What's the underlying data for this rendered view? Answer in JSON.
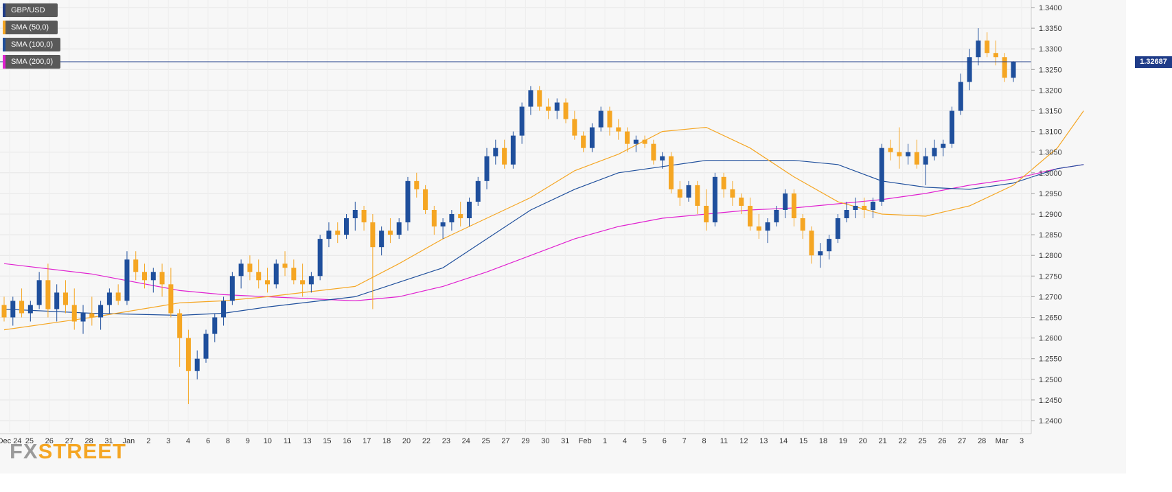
{
  "chart_data": {
    "type": "candlestick",
    "symbol": "GBP/USD",
    "current_price": "1.32687",
    "current_price_value": 1.32687,
    "watermark": {
      "part1": "FX",
      "part2": "STREET"
    },
    "legend": [
      {
        "label": "GBP/USD",
        "color": "#1f3c88"
      },
      {
        "label": "SMA (50,0)",
        "color": "#f5a623"
      },
      {
        "label": "SMA (100,0)",
        "color": "#1f4f9c"
      },
      {
        "label": "SMA (200,0)",
        "color": "#e020d0"
      }
    ],
    "ylim": [
      1.2375,
      1.341
    ],
    "y_ticks": [
      "1.3400",
      "1.3350",
      "1.3300",
      "1.3250",
      "1.3200",
      "1.3150",
      "1.3100",
      "1.3050",
      "1.3000",
      "1.2950",
      "1.2900",
      "1.2850",
      "1.2800",
      "1.2750",
      "1.2700",
      "1.2650",
      "1.2600",
      "1.2550",
      "1.2500",
      "1.2450",
      "1.2400"
    ],
    "x_tick_labels": [
      "Dec 24",
      "25",
      "26",
      "27",
      "28",
      "31",
      "Jan",
      "2",
      "3",
      "4",
      "6",
      "8",
      "9",
      "10",
      "11",
      "13",
      "15",
      "16",
      "17",
      "18",
      "20",
      "22",
      "23",
      "24",
      "25",
      "27",
      "29",
      "30",
      "31",
      "Feb",
      "1",
      "4",
      "5",
      "6",
      "7",
      "8",
      "11",
      "12",
      "13",
      "14",
      "15",
      "18",
      "19",
      "20",
      "21",
      "22",
      "25",
      "26",
      "27",
      "28",
      "Mar",
      "3"
    ],
    "bull_color": "#1f4f9c",
    "bear_color": "#f5a623",
    "grid": true,
    "candles": [
      [
        1.268,
        1.27,
        1.264,
        1.265
      ],
      [
        1.265,
        1.27,
        1.263,
        1.269
      ],
      [
        1.269,
        1.272,
        1.265,
        1.266
      ],
      [
        1.266,
        1.269,
        1.264,
        1.268
      ],
      [
        1.268,
        1.276,
        1.267,
        1.274
      ],
      [
        1.274,
        1.278,
        1.265,
        1.267
      ],
      [
        1.267,
        1.273,
        1.264,
        1.271
      ],
      [
        1.271,
        1.274,
        1.266,
        1.268
      ],
      [
        1.268,
        1.272,
        1.262,
        1.264
      ],
      [
        1.264,
        1.268,
        1.261,
        1.266
      ],
      [
        1.266,
        1.27,
        1.263,
        1.265
      ],
      [
        1.265,
        1.269,
        1.262,
        1.268
      ],
      [
        1.268,
        1.272,
        1.266,
        1.271
      ],
      [
        1.271,
        1.273,
        1.268,
        1.269
      ],
      [
        1.269,
        1.281,
        1.268,
        1.279
      ],
      [
        1.279,
        1.281,
        1.274,
        1.276
      ],
      [
        1.276,
        1.278,
        1.272,
        1.274
      ],
      [
        1.274,
        1.277,
        1.271,
        1.276
      ],
      [
        1.276,
        1.278,
        1.27,
        1.273
      ],
      [
        1.273,
        1.277,
        1.265,
        1.266
      ],
      [
        1.266,
        1.267,
        1.253,
        1.26
      ],
      [
        1.26,
        1.262,
        1.244,
        1.252
      ],
      [
        1.252,
        1.257,
        1.25,
        1.255
      ],
      [
        1.255,
        1.262,
        1.254,
        1.261
      ],
      [
        1.261,
        1.266,
        1.259,
        1.265
      ],
      [
        1.265,
        1.27,
        1.263,
        1.269
      ],
      [
        1.269,
        1.276,
        1.268,
        1.275
      ],
      [
        1.275,
        1.279,
        1.272,
        1.278
      ],
      [
        1.278,
        1.28,
        1.274,
        1.276
      ],
      [
        1.276,
        1.279,
        1.272,
        1.274
      ],
      [
        1.274,
        1.277,
        1.271,
        1.273
      ],
      [
        1.273,
        1.279,
        1.272,
        1.278
      ],
      [
        1.278,
        1.281,
        1.275,
        1.277
      ],
      [
        1.277,
        1.279,
        1.273,
        1.274
      ],
      [
        1.274,
        1.278,
        1.27,
        1.273
      ],
      [
        1.273,
        1.276,
        1.271,
        1.275
      ],
      [
        1.275,
        1.285,
        1.274,
        1.284
      ],
      [
        1.284,
        1.288,
        1.282,
        1.286
      ],
      [
        1.286,
        1.288,
        1.283,
        1.285
      ],
      [
        1.285,
        1.29,
        1.284,
        1.289
      ],
      [
        1.289,
        1.293,
        1.286,
        1.291
      ],
      [
        1.291,
        1.292,
        1.286,
        1.288
      ],
      [
        1.288,
        1.29,
        1.267,
        1.282
      ],
      [
        1.282,
        1.287,
        1.28,
        1.286
      ],
      [
        1.286,
        1.289,
        1.283,
        1.285
      ],
      [
        1.285,
        1.289,
        1.284,
        1.288
      ],
      [
        1.288,
        1.299,
        1.286,
        1.298
      ],
      [
        1.298,
        1.3,
        1.294,
        1.296
      ],
      [
        1.296,
        1.297,
        1.29,
        1.291
      ],
      [
        1.291,
        1.292,
        1.285,
        1.287
      ],
      [
        1.287,
        1.289,
        1.284,
        1.288
      ],
      [
        1.288,
        1.291,
        1.286,
        1.29
      ],
      [
        1.29,
        1.293,
        1.287,
        1.289
      ],
      [
        1.289,
        1.294,
        1.287,
        1.293
      ],
      [
        1.293,
        1.299,
        1.292,
        1.298
      ],
      [
        1.298,
        1.306,
        1.296,
        1.304
      ],
      [
        1.304,
        1.308,
        1.302,
        1.306
      ],
      [
        1.306,
        1.308,
        1.301,
        1.302
      ],
      [
        1.302,
        1.31,
        1.301,
        1.309
      ],
      [
        1.309,
        1.317,
        1.307,
        1.316
      ],
      [
        1.316,
        1.321,
        1.314,
        1.32
      ],
      [
        1.32,
        1.321,
        1.315,
        1.316
      ],
      [
        1.316,
        1.318,
        1.313,
        1.315
      ],
      [
        1.315,
        1.318,
        1.313,
        1.317
      ],
      [
        1.317,
        1.318,
        1.312,
        1.313
      ],
      [
        1.313,
        1.315,
        1.308,
        1.309
      ],
      [
        1.309,
        1.31,
        1.305,
        1.306
      ],
      [
        1.306,
        1.312,
        1.305,
        1.311
      ],
      [
        1.311,
        1.316,
        1.31,
        1.315
      ],
      [
        1.315,
        1.316,
        1.309,
        1.311
      ],
      [
        1.311,
        1.313,
        1.308,
        1.31
      ],
      [
        1.31,
        1.311,
        1.305,
        1.307
      ],
      [
        1.307,
        1.309,
        1.305,
        1.308
      ],
      [
        1.308,
        1.309,
        1.306,
        1.307
      ],
      [
        1.307,
        1.308,
        1.302,
        1.303
      ],
      [
        1.303,
        1.305,
        1.301,
        1.304
      ],
      [
        1.304,
        1.305,
        1.295,
        1.296
      ],
      [
        1.296,
        1.298,
        1.292,
        1.294
      ],
      [
        1.294,
        1.298,
        1.293,
        1.297
      ],
      [
        1.297,
        1.298,
        1.29,
        1.292
      ],
      [
        1.292,
        1.296,
        1.286,
        1.288
      ],
      [
        1.288,
        1.3,
        1.287,
        1.299
      ],
      [
        1.299,
        1.3,
        1.294,
        1.296
      ],
      [
        1.296,
        1.298,
        1.292,
        1.294
      ],
      [
        1.294,
        1.295,
        1.29,
        1.292
      ],
      [
        1.292,
        1.294,
        1.286,
        1.287
      ],
      [
        1.287,
        1.29,
        1.284,
        1.286
      ],
      [
        1.286,
        1.289,
        1.283,
        1.288
      ],
      [
        1.288,
        1.292,
        1.287,
        1.291
      ],
      [
        1.291,
        1.296,
        1.289,
        1.295
      ],
      [
        1.295,
        1.296,
        1.287,
        1.289
      ],
      [
        1.289,
        1.29,
        1.284,
        1.286
      ],
      [
        1.286,
        1.287,
        1.278,
        1.28
      ],
      [
        1.28,
        1.283,
        1.277,
        1.281
      ],
      [
        1.281,
        1.285,
        1.279,
        1.284
      ],
      [
        1.284,
        1.29,
        1.283,
        1.289
      ],
      [
        1.289,
        1.293,
        1.288,
        1.291
      ],
      [
        1.291,
        1.294,
        1.289,
        1.292
      ],
      [
        1.292,
        1.294,
        1.289,
        1.291
      ],
      [
        1.291,
        1.294,
        1.289,
        1.293
      ],
      [
        1.293,
        1.307,
        1.292,
        1.306
      ],
      [
        1.306,
        1.308,
        1.303,
        1.305
      ],
      [
        1.305,
        1.311,
        1.301,
        1.304
      ],
      [
        1.304,
        1.307,
        1.302,
        1.305
      ],
      [
        1.305,
        1.308,
        1.301,
        1.302
      ],
      [
        1.302,
        1.306,
        1.297,
        1.304
      ],
      [
        1.304,
        1.308,
        1.303,
        1.306
      ],
      [
        1.306,
        1.308,
        1.304,
        1.307
      ],
      [
        1.307,
        1.316,
        1.306,
        1.315
      ],
      [
        1.315,
        1.324,
        1.314,
        1.322
      ],
      [
        1.322,
        1.33,
        1.32,
        1.328
      ],
      [
        1.328,
        1.335,
        1.326,
        1.332
      ],
      [
        1.332,
        1.334,
        1.328,
        1.329
      ],
      [
        1.329,
        1.332,
        1.326,
        1.328
      ],
      [
        1.328,
        1.329,
        1.322,
        1.323
      ],
      [
        1.323,
        1.327,
        1.322,
        1.3269
      ]
    ],
    "sma50": [
      [
        0,
        1.262
      ],
      [
        10,
        1.265
      ],
      [
        20,
        1.2685
      ],
      [
        25,
        1.269
      ],
      [
        30,
        1.27
      ],
      [
        40,
        1.2725
      ],
      [
        45,
        1.278
      ],
      [
        50,
        1.284
      ],
      [
        55,
        1.289
      ],
      [
        60,
        1.294
      ],
      [
        65,
        1.3005
      ],
      [
        70,
        1.3045
      ],
      [
        75,
        1.31
      ],
      [
        80,
        1.311
      ],
      [
        85,
        1.306
      ],
      [
        90,
        1.299
      ],
      [
        95,
        1.293
      ],
      [
        100,
        1.29
      ],
      [
        105,
        1.2895
      ],
      [
        110,
        1.292
      ],
      [
        115,
        1.297
      ],
      [
        120,
        1.306
      ],
      [
        123,
        1.315
      ]
    ],
    "sma100": [
      [
        0,
        1.267
      ],
      [
        10,
        1.266
      ],
      [
        20,
        1.2655
      ],
      [
        25,
        1.266
      ],
      [
        30,
        1.2675
      ],
      [
        40,
        1.27
      ],
      [
        45,
        1.2735
      ],
      [
        50,
        1.277
      ],
      [
        55,
        1.284
      ],
      [
        60,
        1.291
      ],
      [
        65,
        1.296
      ],
      [
        70,
        1.3
      ],
      [
        75,
        1.3015
      ],
      [
        80,
        1.303
      ],
      [
        85,
        1.303
      ],
      [
        90,
        1.303
      ],
      [
        95,
        1.302
      ],
      [
        100,
        1.298
      ],
      [
        105,
        1.2965
      ],
      [
        110,
        1.296
      ],
      [
        115,
        1.2975
      ],
      [
        120,
        1.301
      ],
      [
        123,
        1.302
      ]
    ],
    "sma200": [
      [
        0,
        1.278
      ],
      [
        10,
        1.2755
      ],
      [
        20,
        1.2715
      ],
      [
        25,
        1.2705
      ],
      [
        30,
        1.27
      ],
      [
        40,
        1.269
      ],
      [
        45,
        1.27
      ],
      [
        50,
        1.2725
      ],
      [
        55,
        1.276
      ],
      [
        60,
        1.28
      ],
      [
        65,
        1.284
      ],
      [
        70,
        1.287
      ],
      [
        75,
        1.289
      ],
      [
        80,
        1.29
      ],
      [
        85,
        1.291
      ],
      [
        90,
        1.2915
      ],
      [
        95,
        1.2925
      ],
      [
        100,
        1.2935
      ],
      [
        105,
        1.295
      ],
      [
        110,
        1.297
      ],
      [
        115,
        1.2985
      ],
      [
        120,
        1.301
      ],
      [
        123,
        1.302
      ]
    ]
  }
}
